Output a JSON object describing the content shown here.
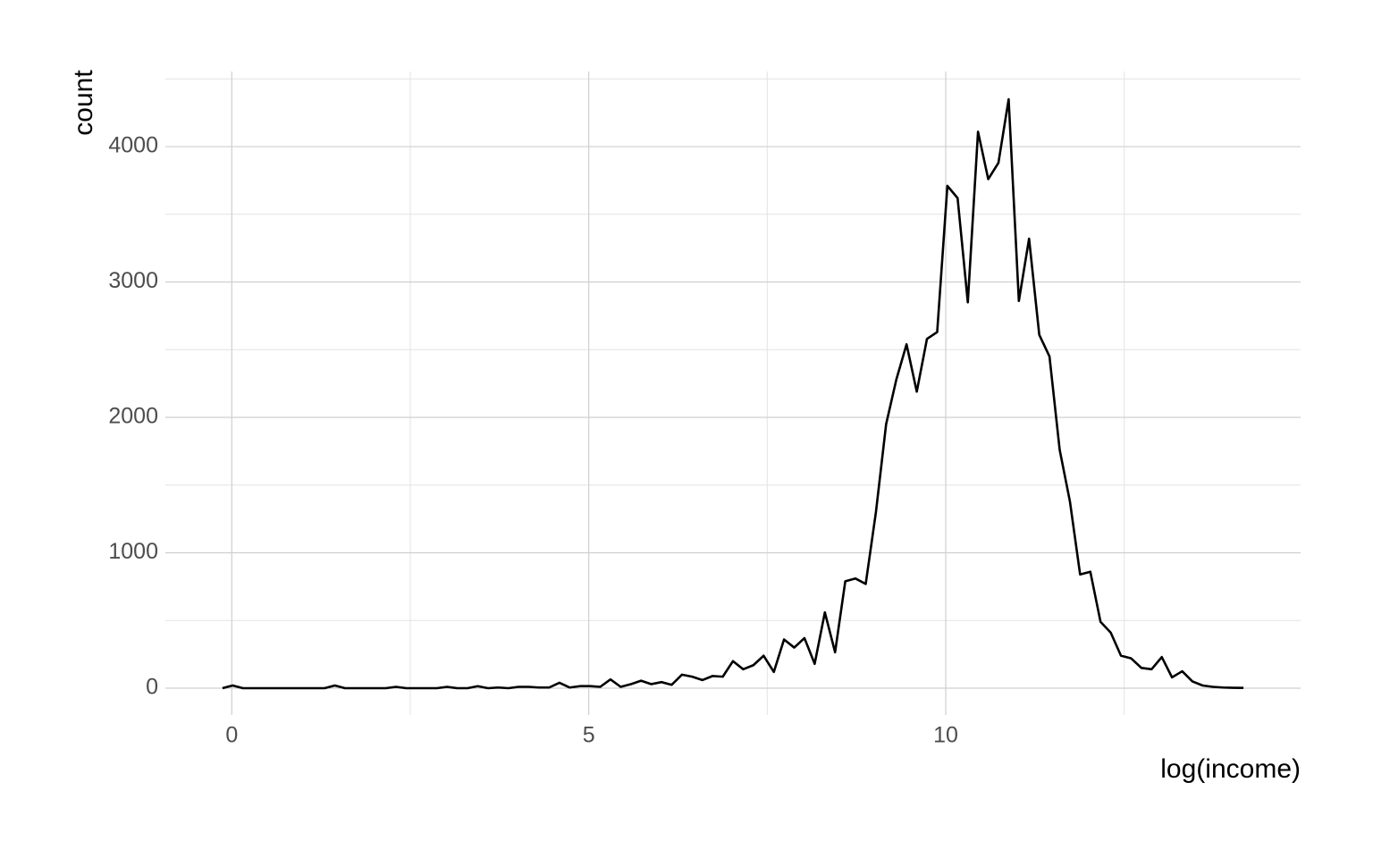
{
  "chart_data": {
    "type": "line",
    "x_label": "log(income)",
    "y_label": "count",
    "x": [
      -0.13,
      0.013,
      0.156,
      0.299,
      0.442,
      0.585,
      0.728,
      0.871,
      1.014,
      1.157,
      1.3,
      1.443,
      1.586,
      1.729,
      1.872,
      2.015,
      2.158,
      2.301,
      2.444,
      2.587,
      2.73,
      2.873,
      3.016,
      3.159,
      3.302,
      3.445,
      3.588,
      3.731,
      3.874,
      4.017,
      4.16,
      4.303,
      4.446,
      4.589,
      4.732,
      4.875,
      5.018,
      5.161,
      5.304,
      5.447,
      5.59,
      5.733,
      5.876,
      6.019,
      6.162,
      6.305,
      6.448,
      6.591,
      6.734,
      6.877,
      7.02,
      7.163,
      7.306,
      7.449,
      7.592,
      7.735,
      7.878,
      8.021,
      8.164,
      8.307,
      8.45,
      8.593,
      8.736,
      8.879,
      9.022,
      9.165,
      9.308,
      9.451,
      9.594,
      9.737,
      9.88,
      10.023,
      10.166,
      10.309,
      10.452,
      10.595,
      10.738,
      10.881,
      11.024,
      11.167,
      11.31,
      11.453,
      11.596,
      11.739,
      11.882,
      12.025,
      12.168,
      12.311,
      12.454,
      12.597,
      12.74,
      12.883,
      13.026,
      13.169,
      13.312,
      13.455,
      13.598,
      13.741,
      13.884,
      14.027,
      14.17
    ],
    "series": [
      {
        "color": "#000000",
        "values": [
          0,
          20,
          0,
          0,
          0,
          0,
          0,
          0,
          0,
          0,
          0,
          20,
          0,
          0,
          0,
          0,
          0,
          10,
          0,
          0,
          0,
          0,
          10,
          0,
          0,
          15,
          0,
          5,
          0,
          10,
          10,
          5,
          5,
          40,
          5,
          15,
          15,
          10,
          65,
          10,
          30,
          55,
          30,
          45,
          25,
          100,
          85,
          60,
          90,
          85,
          200,
          140,
          170,
          240,
          120,
          360,
          300,
          370,
          180,
          560,
          265,
          790,
          810,
          770,
          1300,
          1950,
          2280,
          2540,
          2190,
          2580,
          2630,
          3710,
          3620,
          2850,
          4110,
          3760,
          3880,
          4350,
          2860,
          3320,
          2610,
          2450,
          1760,
          1380,
          840,
          860,
          490,
          410,
          240,
          220,
          150,
          140,
          230,
          80,
          125,
          50,
          20,
          10,
          5,
          3,
          2
        ]
      }
    ],
    "xlim": [
      -0.93,
      14.97
    ],
    "ylim": [
      -198,
      4502
    ],
    "xticks": [
      0,
      5,
      10
    ],
    "yticks": [
      0,
      1000,
      2000,
      3000,
      4000
    ],
    "x_minor_ticks": [
      2.5,
      7.5,
      12.5
    ],
    "y_minor_ticks": [
      500,
      1500,
      2500,
      3500,
      4500
    ],
    "grid": true
  }
}
